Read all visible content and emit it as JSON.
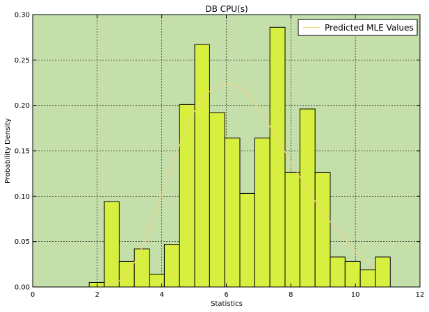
{
  "chart_data": {
    "type": "bar",
    "title": "DB CPU(s)",
    "xlabel": "Statistics",
    "ylabel": "Probability Density",
    "xlim": [
      0,
      12
    ],
    "ylim": [
      0,
      0.3
    ],
    "x_ticks": [
      0,
      2,
      4,
      6,
      8,
      10,
      12
    ],
    "y_ticks": [
      0.0,
      0.05,
      0.1,
      0.15,
      0.2,
      0.25,
      0.3
    ],
    "grid": true,
    "legend_position": "top-right",
    "background_color": "#c4dfaa",
    "bar_color": "#d7f03f",
    "line_color": "#f2d28a",
    "histogram": {
      "bin_edges": [
        1.75,
        2.22,
        2.68,
        3.15,
        3.62,
        4.08,
        4.55,
        5.02,
        5.48,
        5.95,
        6.42,
        6.88,
        7.35,
        7.82,
        8.28,
        8.75,
        9.22,
        9.68,
        10.15,
        10.62,
        11.08
      ],
      "values": [
        0.005,
        0.094,
        0.028,
        0.042,
        0.014,
        0.047,
        0.201,
        0.267,
        0.192,
        0.164,
        0.103,
        0.164,
        0.286,
        0.126,
        0.196,
        0.126,
        0.033,
        0.028,
        0.019,
        0.033
      ]
    },
    "series": [
      {
        "name": "Predicted MLE Values",
        "type": "line",
        "x": [
          2.3,
          2.8,
          3.3,
          3.8,
          4.3,
          4.8,
          5.3,
          5.8,
          6.1,
          6.5,
          7.0,
          7.5,
          8.0,
          8.5,
          9.0,
          9.5,
          10.0,
          10.6
        ],
        "y": [
          0.002,
          0.01,
          0.037,
          0.082,
          0.132,
          0.178,
          0.209,
          0.222,
          0.223,
          0.218,
          0.196,
          0.168,
          0.138,
          0.108,
          0.082,
          0.06,
          0.04,
          0.02
        ]
      }
    ]
  }
}
